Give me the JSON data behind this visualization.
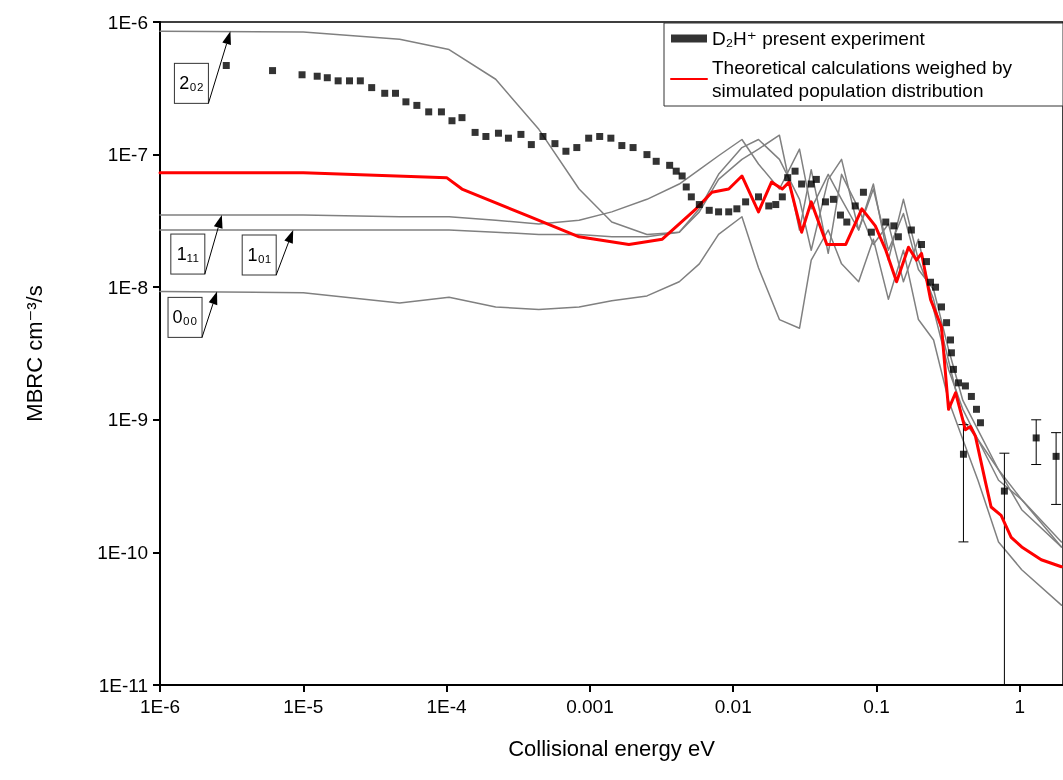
{
  "chart_data": {
    "type": "line",
    "xlabel": "Collisional energy eV",
    "ylabel": "MBRC cm⁻³/s",
    "log": "xy",
    "grid": false,
    "legend": "top right",
    "xlim": [
      1e-06,
      2
    ],
    "ylim": [
      1e-11,
      1e-06
    ],
    "xticks": [
      {
        "value": 1e-06,
        "label": "1E-6"
      },
      {
        "value": 1e-05,
        "label": "1E-5"
      },
      {
        "value": 0.0001,
        "label": "1E-4"
      },
      {
        "value": 0.001,
        "label": "0.001"
      },
      {
        "value": 0.01,
        "label": "0.01"
      },
      {
        "value": 0.1,
        "label": "0.1"
      },
      {
        "value": 1,
        "label": "1"
      }
    ],
    "yticks": [
      {
        "value": 1e-11,
        "label": "1E-11"
      },
      {
        "value": 1e-10,
        "label": "1E-10"
      },
      {
        "value": 1e-09,
        "label": "1E-9"
      },
      {
        "value": 1e-08,
        "label": "1E-8"
      },
      {
        "value": 1e-07,
        "label": "1E-7"
      },
      {
        "value": 1e-06,
        "label": "1E-6"
      }
    ],
    "annotations": [
      {
        "text": "2₀₂",
        "x": 3.1e-06,
        "y": 8.5e-07
      },
      {
        "text": "1₁₁",
        "x": 2.7e-06,
        "y": 3.5e-08
      },
      {
        "text": "1₀₁",
        "x": 8.5e-06,
        "y": 2.7e-08
      },
      {
        "text": "0₀₀",
        "x": 2.5e-06,
        "y": 9.3e-09
      }
    ],
    "series": [
      {
        "color": "#808080",
        "marker": "none",
        "line_style": "solid",
        "x": [
          1e-06,
          1e-05,
          4.7e-05,
          0.000104,
          0.00022,
          0.00044,
          0.00084,
          0.00142,
          0.0025,
          0.0042,
          0.0058,
          0.0079,
          0.0115,
          0.015,
          0.021,
          0.029,
          0.035,
          0.046,
          0.057,
          0.075,
          0.095,
          0.121,
          0.154,
          0.196,
          0.25,
          0.318,
          0.4,
          0.51,
          0.71,
          1.03,
          1.95
        ],
        "values": [
          8.5e-07,
          8.4e-07,
          7.4e-07,
          6.2e-07,
          3.7e-07,
          1.55e-07,
          5.5e-08,
          3.1e-08,
          2.5e-08,
          2.6e-08,
          3.9e-08,
          7.1e-08,
          1.13e-07,
          1.3e-07,
          9.2e-08,
          4.6e-08,
          1.9e-08,
          6.5e-08,
          9.2e-08,
          2.7e-08,
          6e-08,
          1.6e-08,
          4.6e-08,
          1.6e-08,
          8.1e-09,
          2.8e-09,
          1e-09,
          7.1e-10,
          3.5e-10,
          2.5e-10,
          1.2e-10
        ]
      },
      {
        "color": "#808080",
        "marker": "none",
        "line_style": "solid",
        "x": [
          1e-06,
          1e-05,
          4.7e-05,
          0.000104,
          0.00022,
          0.00044,
          0.00084,
          0.00142,
          0.0025,
          0.0042,
          0.0058,
          0.0079,
          0.0115,
          0.015,
          0.021,
          0.029,
          0.035,
          0.046,
          0.057,
          0.075,
          0.095,
          0.121,
          0.154,
          0.196,
          0.25,
          0.318,
          0.4,
          0.51,
          0.71,
          1.03,
          1.95
        ],
        "values": [
          3.5e-08,
          3.5e-08,
          3.4e-08,
          3.4e-08,
          3.2e-08,
          3e-08,
          3.2e-08,
          3.7e-08,
          4.6e-08,
          6e-08,
          7.7e-08,
          9.8e-08,
          1.3e-07,
          8.5e-08,
          5.5e-08,
          1.1e-07,
          3.9e-08,
          7.1e-08,
          4.6e-08,
          2.7e-08,
          5.5e-08,
          1.9e-08,
          3.6e-08,
          1.36e-08,
          9.6e-09,
          3.4e-09,
          1.4e-09,
          8.4e-10,
          4.2e-10,
          2.5e-10,
          1.1e-10
        ]
      },
      {
        "color": "#808080",
        "marker": "none",
        "line_style": "solid",
        "x": [
          1e-06,
          1e-05,
          4.7e-05,
          0.000104,
          0.00022,
          0.00044,
          0.00084,
          0.00142,
          0.0025,
          0.0042,
          0.0058,
          0.0079,
          0.0115,
          0.015,
          0.021,
          0.029,
          0.035,
          0.046,
          0.057,
          0.075,
          0.095,
          0.121,
          0.154,
          0.196,
          0.25,
          0.318,
          0.4,
          0.51,
          0.71,
          1.03,
          1.95
        ],
        "values": [
          2.7e-08,
          2.7e-08,
          2.7e-08,
          2.7e-08,
          2.6e-08,
          2.5e-08,
          2.5e-08,
          2.4e-08,
          2.4e-08,
          2.6e-08,
          3.7e-08,
          6.5e-08,
          9.2e-08,
          1.1e-07,
          1.4e-07,
          2.7e-08,
          7.7e-08,
          1.8e-08,
          7.1e-08,
          3.9e-08,
          2.1e-08,
          3e-08,
          1.1e-08,
          2.3e-08,
          6.8e-09,
          2.4e-09,
          1.2e-09,
          7.1e-10,
          4.2e-10,
          2.1e-10,
          1.1e-10
        ]
      },
      {
        "color": "#808080",
        "marker": "none",
        "line_style": "solid",
        "x": [
          1e-06,
          1e-05,
          4.7e-05,
          0.000104,
          0.00022,
          0.00044,
          0.00084,
          0.00142,
          0.0025,
          0.0042,
          0.0058,
          0.0079,
          0.0115,
          0.015,
          0.021,
          0.029,
          0.035,
          0.046,
          0.057,
          0.075,
          0.095,
          0.121,
          0.154,
          0.196,
          0.25,
          0.318,
          0.4,
          0.51,
          0.71,
          1.03,
          1.95
        ],
        "values": [
          9.3e-09,
          9.1e-09,
          7.6e-09,
          8.4e-09,
          7.1e-09,
          6.8e-09,
          7.1e-09,
          7.9e-09,
          8.6e-09,
          1.1e-08,
          1.5e-08,
          2.5e-08,
          3.4e-08,
          1.4e-08,
          5.7e-09,
          4.9e-09,
          1.6e-08,
          2.7e-08,
          1.5e-08,
          1.1e-08,
          2.3e-08,
          8.1e-09,
          1.9e-08,
          5.7e-09,
          4e-09,
          1.4e-09,
          7.1e-10,
          3.5e-10,
          1.2e-10,
          7.4e-11,
          4e-11
        ]
      },
      {
        "type": "scatter",
        "name": "D₂H⁺ present experiment",
        "color": "#000000",
        "marker": "square",
        "x": [
          2.9e-06,
          6.1e-06,
          9.8e-06,
          1.25e-05,
          1.47e-05,
          1.75e-05,
          2.1e-05,
          2.5e-05,
          3e-05,
          3.7e-05,
          4.4e-05,
          5.2e-05,
          6.2e-05,
          7.5e-05,
          9.2e-05,
          0.000109,
          0.000128,
          0.000158,
          0.000188,
          0.00023,
          0.00027,
          0.00033,
          0.00039,
          0.00047,
          0.00057,
          0.00068,
          0.00081,
          0.00098,
          0.00117,
          0.0014,
          0.00167,
          0.002,
          0.0025,
          0.0029,
          0.0036,
          0.004,
          0.0044,
          0.0047,
          0.0051,
          0.0058,
          0.0068,
          0.0079,
          0.0093,
          0.0106,
          0.0122,
          0.015,
          0.0177,
          0.0198,
          0.022,
          0.024,
          0.027,
          0.03,
          0.035,
          0.038,
          0.044,
          0.05,
          0.056,
          0.062,
          0.071,
          0.081,
          0.092,
          0.116,
          0.132,
          0.142,
          0.175,
          0.206,
          0.223,
          0.238,
          0.258,
          0.284,
          0.308,
          0.328,
          0.333,
          0.344,
          0.373,
          0.417,
          0.459,
          0.498,
          0.531,
          0.404,
          0.78,
          1.3,
          1.79
        ],
        "values": [
          4.7e-07,
          4.3e-07,
          4e-07,
          3.9e-07,
          3.8e-07,
          3.6e-07,
          3.6e-07,
          3.6e-07,
          3.2e-07,
          2.9e-07,
          2.9e-07,
          2.5e-07,
          2.35e-07,
          2.1e-07,
          2.1e-07,
          1.8e-07,
          1.9e-07,
          1.47e-07,
          1.37e-07,
          1.45e-07,
          1.33e-07,
          1.42e-07,
          1.19e-07,
          1.37e-07,
          1.21e-07,
          1.06e-07,
          1.13e-07,
          1.33e-07,
          1.37e-07,
          1.33e-07,
          1.17e-07,
          1.13e-07,
          1e-07,
          8.9e-08,
          8.3e-08,
          7.5e-08,
          6.9e-08,
          5.7e-08,
          4.8e-08,
          4.2e-08,
          3.8e-08,
          3.7e-08,
          3.7e-08,
          3.9e-08,
          4.4e-08,
          4.8e-08,
          4.1e-08,
          4.2e-08,
          4.8e-08,
          6.7e-08,
          7.5e-08,
          6e-08,
          6e-08,
          6.5e-08,
          4.4e-08,
          4.6e-08,
          3.5e-08,
          3.1e-08,
          4.1e-08,
          5.2e-08,
          2.6e-08,
          3.1e-08,
          2.9e-08,
          2.4e-08,
          2.7e-08,
          2.1e-08,
          1.56e-08,
          1.09e-08,
          1e-08,
          7.1e-09,
          5.4e-09,
          4e-09,
          3.2e-09,
          2.4e-09,
          1.9e-09,
          1.8e-09,
          1.5e-09,
          1.2e-09,
          9.5e-10,
          5.5e-10,
          2.9e-10,
          7.3e-10,
          5.3e-10
        ],
        "errors": [
          null,
          null,
          null,
          null,
          null,
          null,
          null,
          null,
          null,
          null,
          null,
          null,
          null,
          null,
          null,
          null,
          null,
          null,
          null,
          null,
          null,
          null,
          null,
          null,
          null,
          null,
          null,
          null,
          null,
          null,
          null,
          null,
          null,
          null,
          null,
          null,
          null,
          null,
          null,
          null,
          null,
          null,
          null,
          null,
          null,
          null,
          null,
          null,
          null,
          null,
          null,
          null,
          null,
          null,
          null,
          null,
          null,
          null,
          null,
          null,
          null,
          null,
          null,
          null,
          null,
          null,
          null,
          null,
          null,
          null,
          null,
          null,
          null,
          null,
          null,
          null,
          null,
          null,
          null,
          [
            1.2e-10,
            9.2e-10
          ],
          [
            1e-11,
            5.6e-10
          ],
          [
            4.6e-10,
            1e-09
          ],
          [
            2.3e-10,
            8e-10
          ]
        ]
      },
      {
        "name": "Theoretical calculations weighed by simulated population distribution",
        "color": "#ff0000",
        "marker": "none",
        "line_style": "solid",
        "x": [
          1e-06,
          1e-05,
          0.0001,
          0.000128,
          0.00038,
          0.00084,
          0.00187,
          0.0032,
          0.0055,
          0.0071,
          0.0093,
          0.0115,
          0.015,
          0.0185,
          0.022,
          0.0245,
          0.03,
          0.035,
          0.045,
          0.061,
          0.079,
          0.098,
          0.116,
          0.138,
          0.167,
          0.19,
          0.206,
          0.238,
          0.284,
          0.318,
          0.356,
          0.417,
          0.452,
          0.49,
          0.575,
          0.63,
          0.74,
          0.87,
          1.03,
          1.41,
          1.95
        ],
        "values": [
          7.3e-08,
          7.3e-08,
          6.7e-08,
          5.5e-08,
          3.4e-08,
          2.4e-08,
          2.1e-08,
          2.3e-08,
          3.9e-08,
          5.2e-08,
          5.5e-08,
          6.9e-08,
          3.7e-08,
          6.2e-08,
          5.5e-08,
          6.2e-08,
          2.6e-08,
          4.4e-08,
          2.1e-08,
          2.1e-08,
          3.9e-08,
          2.9e-08,
          1.9e-08,
          1.1e-08,
          2e-08,
          1.6e-08,
          1.8e-08,
          8.1e-09,
          5e-09,
          1.2e-09,
          1.6e-09,
          8.4e-10,
          8.9e-10,
          7.5e-10,
          3.4e-10,
          2.2e-10,
          1.9e-10,
          1.3e-10,
          1.1e-10,
          8.8e-11,
          7.8e-11
        ]
      }
    ]
  }
}
